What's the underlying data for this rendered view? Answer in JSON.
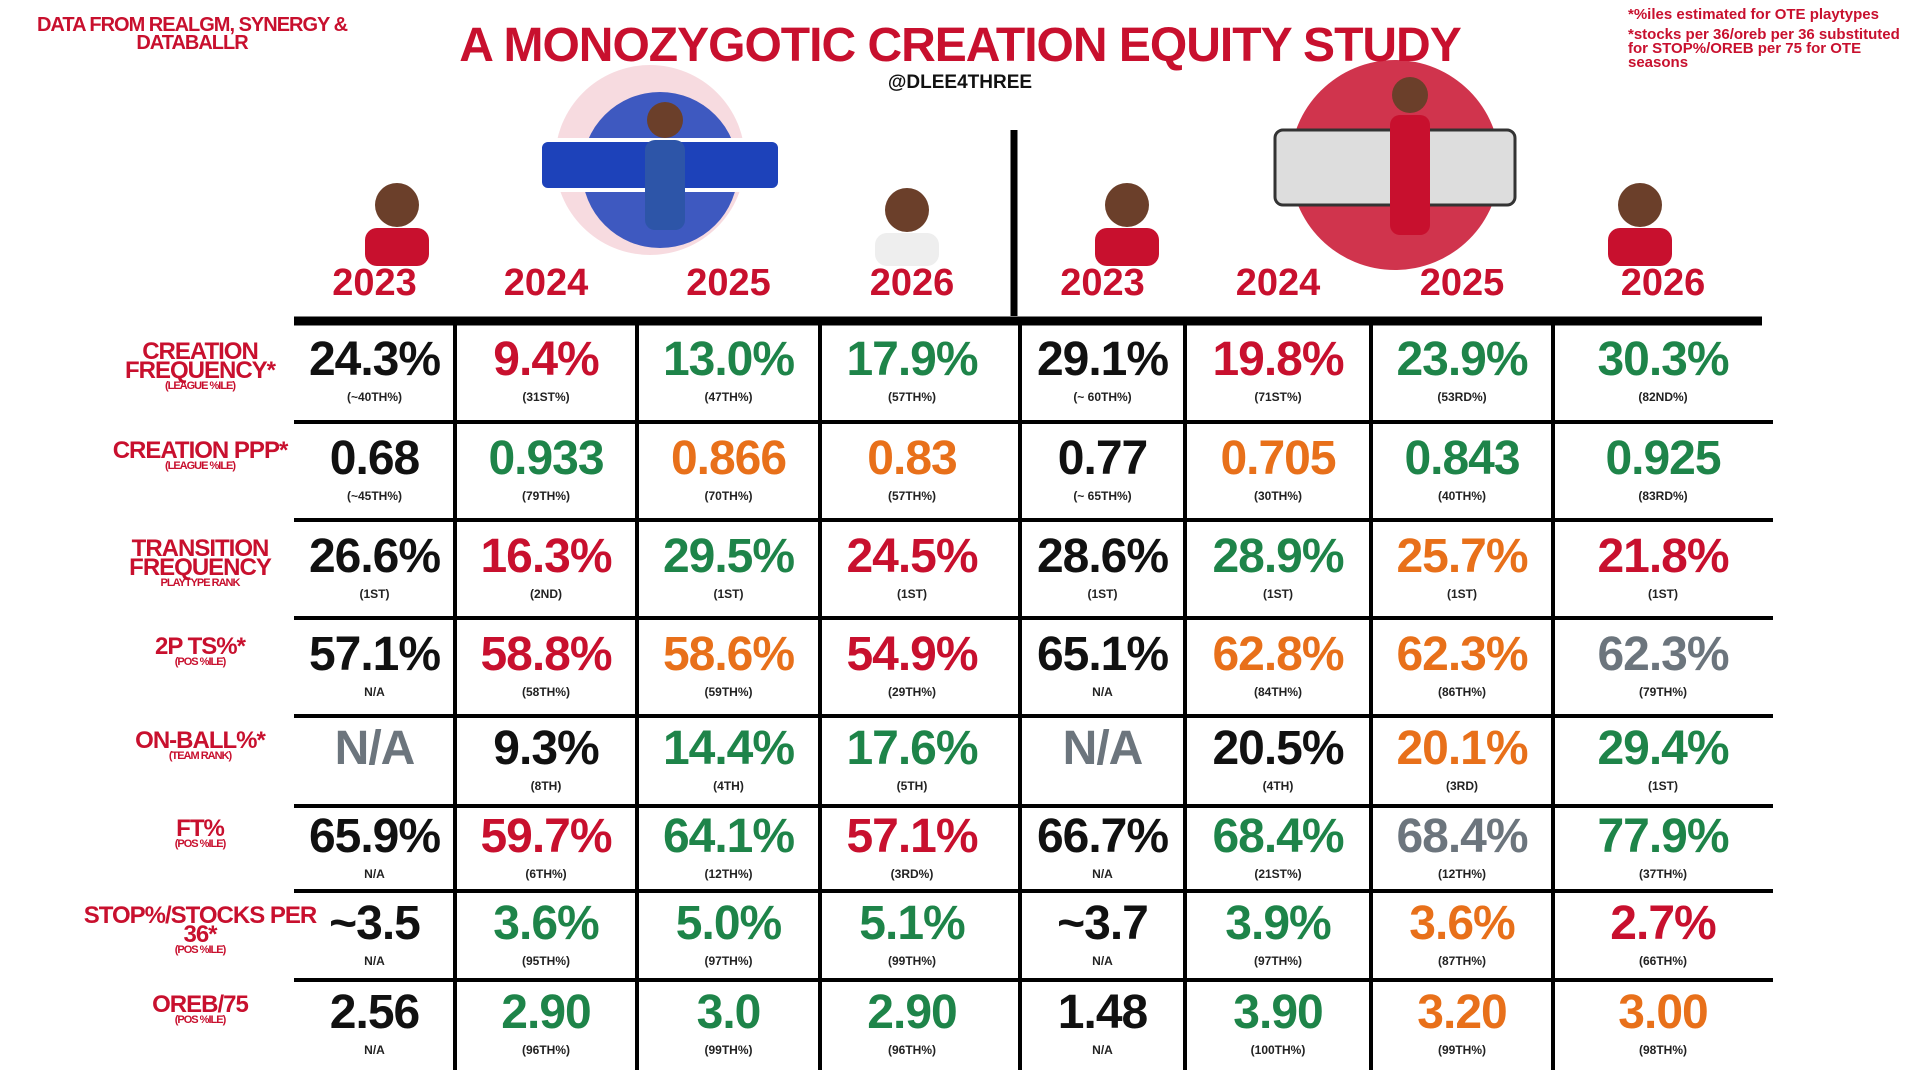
{
  "header": {
    "source": "DATA FROM REALGM, SYNERGY & DATABALLR",
    "title": "A MONOZYGOTIC CREATION EQUITY STUDY",
    "handle": "@DLEE4THREE",
    "notes": [
      "*%iles estimated for OTE playtypes",
      "*stocks per 36/oreb per 36 substituted for STOP%/OREB per 75 for OTE seasons"
    ]
  },
  "table": {
    "columns": [
      "2023",
      "2024",
      "2025",
      "2026",
      "2023",
      "2024",
      "2025",
      "2026"
    ],
    "rows": [
      {
        "label": "CREATION FREQUENCY*",
        "sublabel": "(LEAGUE %ILE)",
        "cells": [
          {
            "value": "24.3%",
            "note": "(~40TH%)",
            "color": "#111111"
          },
          {
            "value": "9.4%",
            "note": "(31ST%)",
            "color": "#c8102e"
          },
          {
            "value": "13.0%",
            "note": "(47TH%)",
            "color": "#1e8449"
          },
          {
            "value": "17.9%",
            "note": "(57TH%)",
            "color": "#1e8449"
          },
          {
            "value": "29.1%",
            "note": "(~ 60TH%)",
            "color": "#111111"
          },
          {
            "value": "19.8%",
            "note": "(71ST%)",
            "color": "#c8102e"
          },
          {
            "value": "23.9%",
            "note": "(53RD%)",
            "color": "#1e8449"
          },
          {
            "value": "30.3%",
            "note": "(82ND%)",
            "color": "#1e8449"
          }
        ]
      },
      {
        "label": "CREATION PPP*",
        "sublabel": "(LEAGUE %ILE)",
        "cells": [
          {
            "value": "0.68",
            "note": "(~45TH%)",
            "color": "#111111"
          },
          {
            "value": "0.933",
            "note": "(79TH%)",
            "color": "#1e8449"
          },
          {
            "value": "0.866",
            "note": "(70TH%)",
            "color": "#e8701a"
          },
          {
            "value": "0.83",
            "note": "(57TH%)",
            "color": "#e8701a"
          },
          {
            "value": "0.77",
            "note": "(~ 65TH%)",
            "color": "#111111"
          },
          {
            "value": "0.705",
            "note": "(30TH%)",
            "color": "#e8701a"
          },
          {
            "value": "0.843",
            "note": "(40TH%)",
            "color": "#1e8449"
          },
          {
            "value": "0.925",
            "note": "(83RD%)",
            "color": "#1e8449"
          }
        ]
      },
      {
        "label": "TRANSITION FREQUENCY",
        "sublabel": "PLAYTYPE RANK",
        "cells": [
          {
            "value": "26.6%",
            "note": "(1ST)",
            "color": "#111111"
          },
          {
            "value": "16.3%",
            "note": "(2ND)",
            "color": "#c8102e"
          },
          {
            "value": "29.5%",
            "note": "(1ST)",
            "color": "#1e8449"
          },
          {
            "value": "24.5%",
            "note": "(1ST)",
            "color": "#c8102e"
          },
          {
            "value": "28.6%",
            "note": "(1ST)",
            "color": "#111111"
          },
          {
            "value": "28.9%",
            "note": "(1ST)",
            "color": "#1e8449"
          },
          {
            "value": "25.7%",
            "note": "(1ST)",
            "color": "#e8701a"
          },
          {
            "value": "21.8%",
            "note": "(1ST)",
            "color": "#c8102e"
          }
        ]
      },
      {
        "label": "2P TS%*",
        "sublabel": "(POS %ILE)",
        "cells": [
          {
            "value": "57.1%",
            "note": "N/A",
            "color": "#111111"
          },
          {
            "value": "58.8%",
            "note": "(58TH%)",
            "color": "#c8102e"
          },
          {
            "value": "58.6%",
            "note": "(59TH%)",
            "color": "#e8701a"
          },
          {
            "value": "54.9%",
            "note": "(29TH%)",
            "color": "#c8102e"
          },
          {
            "value": "65.1%",
            "note": "N/A",
            "color": "#111111"
          },
          {
            "value": "62.8%",
            "note": "(84TH%)",
            "color": "#e8701a"
          },
          {
            "value": "62.3%",
            "note": "(86TH%)",
            "color": "#e8701a"
          },
          {
            "value": "62.3%",
            "note": "(79TH%)",
            "color": "#6c757d"
          }
        ]
      },
      {
        "label": "ON-BALL%*",
        "sublabel": "(TEAM RANK)",
        "cells": [
          {
            "value": "N/A",
            "color": "#6c757d"
          },
          {
            "value": "9.3%",
            "note": "(8TH)",
            "color": "#111111"
          },
          {
            "value": "14.4%",
            "note": "(4TH)",
            "color": "#1e8449"
          },
          {
            "value": "17.6%",
            "note": "(5TH)",
            "color": "#1e8449"
          },
          {
            "value": "N/A",
            "color": "#6c757d"
          },
          {
            "value": "20.5%",
            "note": "(4TH)",
            "color": "#111111"
          },
          {
            "value": "20.1%",
            "note": "(3RD)",
            "color": "#e8701a"
          },
          {
            "value": "29.4%",
            "note": "(1ST)",
            "color": "#1e8449"
          }
        ]
      },
      {
        "label": "FT%",
        "sublabel": "(POS %ILE)",
        "cells": [
          {
            "value": "65.9%",
            "note": "N/A",
            "color": "#111111"
          },
          {
            "value": "59.7%",
            "note": "(6TH%)",
            "color": "#c8102e"
          },
          {
            "value": "64.1%",
            "note": "(12TH%)",
            "color": "#1e8449"
          },
          {
            "value": "57.1%",
            "note": "(3RD%)",
            "color": "#c8102e"
          },
          {
            "value": "66.7%",
            "note": "N/A",
            "color": "#111111"
          },
          {
            "value": "68.4%",
            "note": "(21ST%)",
            "color": "#1e8449"
          },
          {
            "value": "68.4%",
            "note": "(12TH%)",
            "color": "#6c757d"
          },
          {
            "value": "77.9%",
            "note": "(37TH%)",
            "color": "#1e8449"
          }
        ]
      },
      {
        "label": "STOP%/STOCKS PER 36*",
        "sublabel": "(POS %ILE)",
        "cells": [
          {
            "value": "~3.5",
            "note": "N/A",
            "color": "#111111"
          },
          {
            "value": "3.6%",
            "note": "(95TH%)",
            "color": "#1e8449"
          },
          {
            "value": "5.0%",
            "note": "(97TH%)",
            "color": "#1e8449"
          },
          {
            "value": "5.1%",
            "note": "(99TH%)",
            "color": "#1e8449"
          },
          {
            "value": "~3.7",
            "note": "N/A",
            "color": "#111111"
          },
          {
            "value": "3.9%",
            "note": "(97TH%)",
            "color": "#1e8449"
          },
          {
            "value": "3.6%",
            "note": "(87TH%)",
            "color": "#e8701a"
          },
          {
            "value": "2.7%",
            "note": "(66TH%)",
            "color": "#c8102e"
          }
        ]
      },
      {
        "label": "OREB/75",
        "sublabel": "(POS %ILE)",
        "cells": [
          {
            "value": "2.56",
            "note": "N/A",
            "color": "#111111"
          },
          {
            "value": "2.90",
            "note": "(96TH%)",
            "color": "#1e8449"
          },
          {
            "value": "3.0",
            "note": "(99TH%)",
            "color": "#1e8449"
          },
          {
            "value": "2.90",
            "note": "(96TH%)",
            "color": "#1e8449"
          },
          {
            "value": "1.48",
            "note": "N/A",
            "color": "#111111"
          },
          {
            "value": "3.90",
            "note": "(100TH%)",
            "color": "#1e8449"
          },
          {
            "value": "3.20",
            "note": "(99TH%)",
            "color": "#e8701a"
          },
          {
            "value": "3.00",
            "note": "(98TH%)",
            "color": "#e8701a"
          }
        ]
      }
    ]
  }
}
